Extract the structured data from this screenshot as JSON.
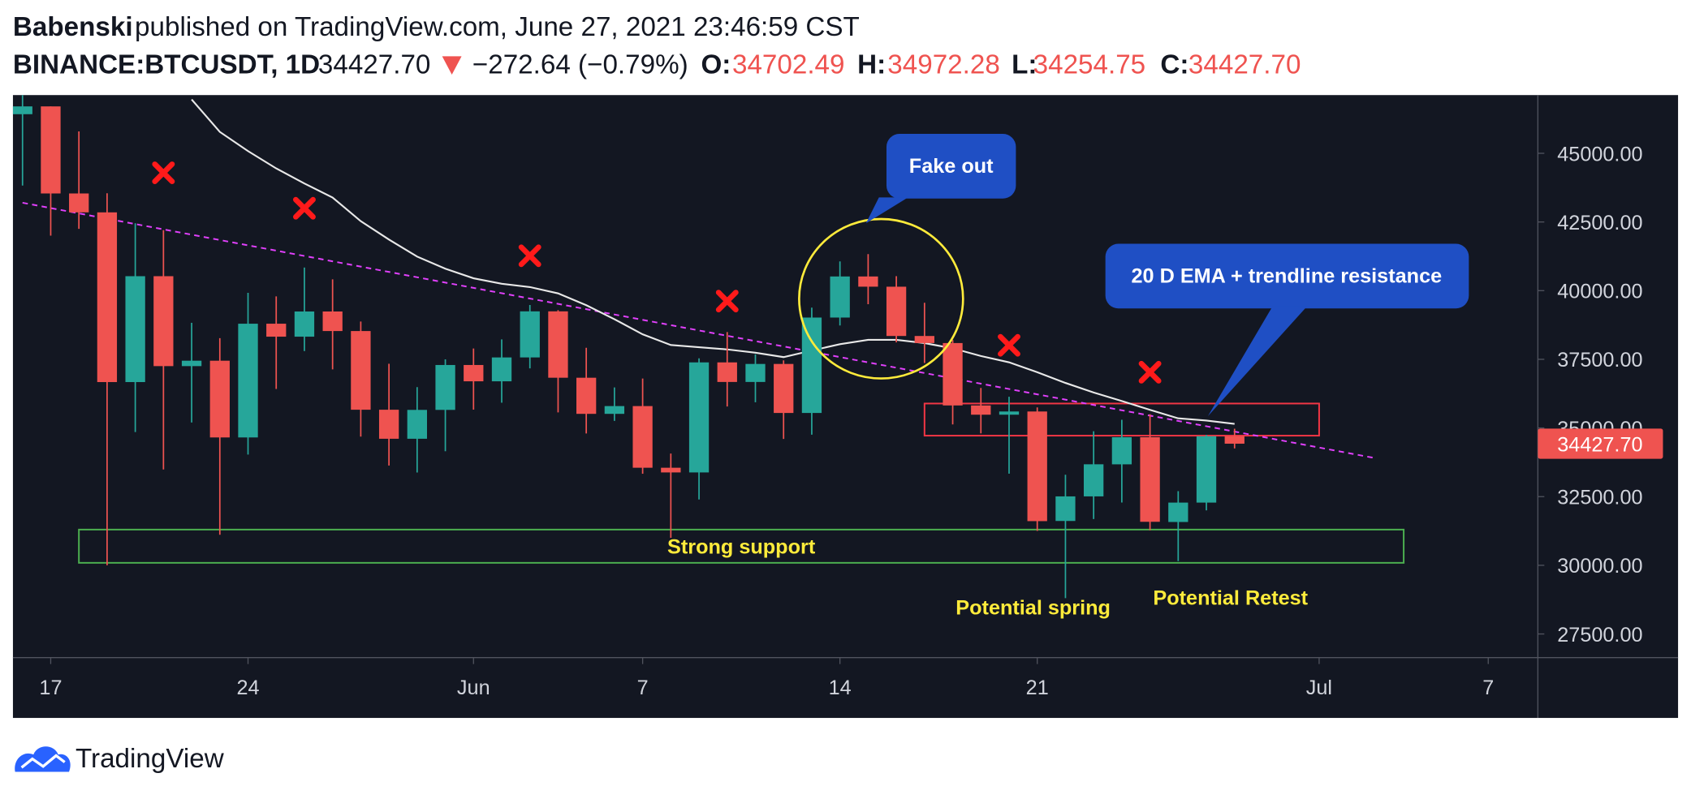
{
  "header": {
    "author": "Babenski",
    "published": "published on TradingView.com, June 27, 2021 23:46:59 CST",
    "symbol": "BINANCE:BTCUSDT, 1D",
    "last": "34427.70",
    "change": "−272.64 (−0.79%)",
    "ohlc": [
      {
        "label": "O:",
        "value": "34702.49"
      },
      {
        "label": "H:",
        "value": "34972.28"
      },
      {
        "label": "L:",
        "value": "34254.75"
      },
      {
        "label": "C:",
        "value": "34427.70"
      }
    ]
  },
  "chart_data": {
    "type": "candlestick",
    "x": [
      "2021-05-16",
      "2021-05-17",
      "2021-05-18",
      "2021-05-19",
      "2021-05-20",
      "2021-05-21",
      "2021-05-22",
      "2021-05-23",
      "2021-05-24",
      "2021-05-25",
      "2021-05-26",
      "2021-05-27",
      "2021-05-28",
      "2021-05-29",
      "2021-05-30",
      "2021-05-31",
      "2021-06-01",
      "2021-06-02",
      "2021-06-03",
      "2021-06-04",
      "2021-06-05",
      "2021-06-06",
      "2021-06-07",
      "2021-06-08",
      "2021-06-09",
      "2021-06-10",
      "2021-06-11",
      "2021-06-12",
      "2021-06-13",
      "2021-06-14",
      "2021-06-15",
      "2021-06-16",
      "2021-06-17",
      "2021-06-18",
      "2021-06-19",
      "2021-06-20",
      "2021-06-21",
      "2021-06-22",
      "2021-06-23",
      "2021-06-24",
      "2021-06-25",
      "2021-06-26",
      "2021-06-27",
      "2021-06-28"
    ],
    "open": [
      46424,
      46708,
      43538,
      42850,
      36671,
      40526,
      37252,
      37449,
      34655,
      38796,
      38324,
      39241,
      38529,
      35664,
      34607,
      35658,
      37293,
      36699,
      37568,
      39246,
      36829,
      35514,
      35797,
      33552,
      33381,
      37388,
      36675,
      37331,
      35546,
      39020,
      40516,
      40143,
      38349,
      38092,
      35820,
      35483,
      35600,
      31614,
      32509,
      33676,
      34663,
      31577,
      32283,
      34702.49
    ],
    "high": [
      49800,
      46708,
      45799,
      43546,
      42451,
      42200,
      38829,
      38270,
      39920,
      39791,
      40841,
      40411,
      38877,
      37338,
      36488,
      37499,
      37894,
      38225,
      39476,
      39289,
      37918,
      36476,
      36800,
      34069,
      37534,
      38491,
      37680,
      37463,
      39380,
      41064,
      41330,
      40527,
      39560,
      38202,
      36457,
      36137,
      35750,
      33298,
      34881,
      35298,
      35500,
      32700,
      34749,
      34972.28
    ],
    "low": [
      43825,
      42001,
      42250,
      30000,
      34850,
      33488,
      35200,
      31111,
      34031,
      36419,
      37800,
      37134,
      34684,
      33632,
      33379,
      34153,
      35666,
      35920,
      37171,
      35567,
      34800,
      35258,
      33333,
      31000,
      32396,
      35782,
      35936,
      34600,
      34757,
      38730,
      39506,
      38116,
      37365,
      35129,
      34803,
      33336,
      31251,
      28805,
      31683,
      32286,
      31275,
      30152,
      32000,
      34254.75
    ],
    "close": [
      46708,
      43538,
      42850,
      36671,
      40526,
      37252,
      37449,
      34655,
      38796,
      38324,
      39241,
      38529,
      35664,
      34607,
      35658,
      37293,
      36699,
      37568,
      39246,
      36829,
      35514,
      35797,
      33552,
      33381,
      37388,
      36675,
      37331,
      35546,
      39020,
      40516,
      40144,
      38349,
      38092,
      35820,
      35483,
      35600,
      31608,
      32509,
      33678,
      34663,
      31584,
      32283,
      34700,
      34427.7
    ],
    "up_color": "#26a69a",
    "down_color": "#ef5350",
    "ema": {
      "color": "#e8e8e8",
      "values": [
        null,
        null,
        null,
        null,
        null,
        null,
        46960,
        45780,
        45080,
        44450,
        43900,
        43390,
        42530,
        41860,
        41240,
        40800,
        40450,
        40250,
        40130,
        39900,
        39470,
        38960,
        38410,
        38020,
        37940,
        37860,
        37740,
        37580,
        37820,
        38050,
        38210,
        38210,
        38090,
        37900,
        37620,
        37390,
        37030,
        36640,
        36290,
        35980,
        35660,
        35350,
        35270,
        35150
      ]
    },
    "trendline": {
      "color": "#e040fb",
      "x": [
        "2021-05-16",
        "2021-07-03"
      ],
      "values": [
        43200,
        33900
      ]
    },
    "zones": [
      {
        "label": "Strong support",
        "color": "#4caf50",
        "x": [
          "2021-05-18",
          "2021-07-04"
        ],
        "values": [
          31300,
          30090
        ]
      },
      {
        "color": "#f23645",
        "x": [
          "2021-06-17",
          "2021-07-01"
        ],
        "values": [
          35890,
          34720
        ]
      }
    ],
    "markers": {
      "color": "#ff1a1a",
      "x": [
        "2021-05-21",
        "2021-05-26",
        "2021-06-03",
        "2021-06-10",
        "2021-06-20",
        "2021-06-25"
      ],
      "values": [
        44290,
        43000,
        41270,
        39620,
        38010,
        37030
      ]
    },
    "callouts": [
      "Fake out",
      "20 D EMA + trendline resistance"
    ],
    "notes": [
      "Potential spring",
      "Potential Retest"
    ],
    "xlim": [
      "2021-05-16",
      "2021-07-08"
    ],
    "xticks": [
      {
        "value": "2021-05-17",
        "label": "17"
      },
      {
        "value": "2021-05-24",
        "label": "24"
      },
      {
        "value": "2021-06-01",
        "label": "Jun"
      },
      {
        "value": "2021-06-07",
        "label": "7"
      },
      {
        "value": "2021-06-14",
        "label": "14"
      },
      {
        "value": "2021-06-21",
        "label": "21"
      },
      {
        "value": "2021-07-01",
        "label": "Jul"
      },
      {
        "value": "2021-07-07",
        "label": "7"
      }
    ],
    "ylim": [
      26640,
      47120
    ],
    "yticks": [
      {
        "value": 27500,
        "label": "27500.00"
      },
      {
        "value": 30000,
        "label": "30000.00"
      },
      {
        "value": 32500,
        "label": "32500.00"
      },
      {
        "value": 35000,
        "label": "35000.00"
      },
      {
        "value": 37500,
        "label": "37500.00"
      },
      {
        "value": 40000,
        "label": "40000.00"
      },
      {
        "value": 42500,
        "label": "42500.00"
      },
      {
        "value": 45000,
        "label": "45000.00"
      }
    ],
    "grid": false
  },
  "footer": {
    "brand": "TradingView"
  }
}
